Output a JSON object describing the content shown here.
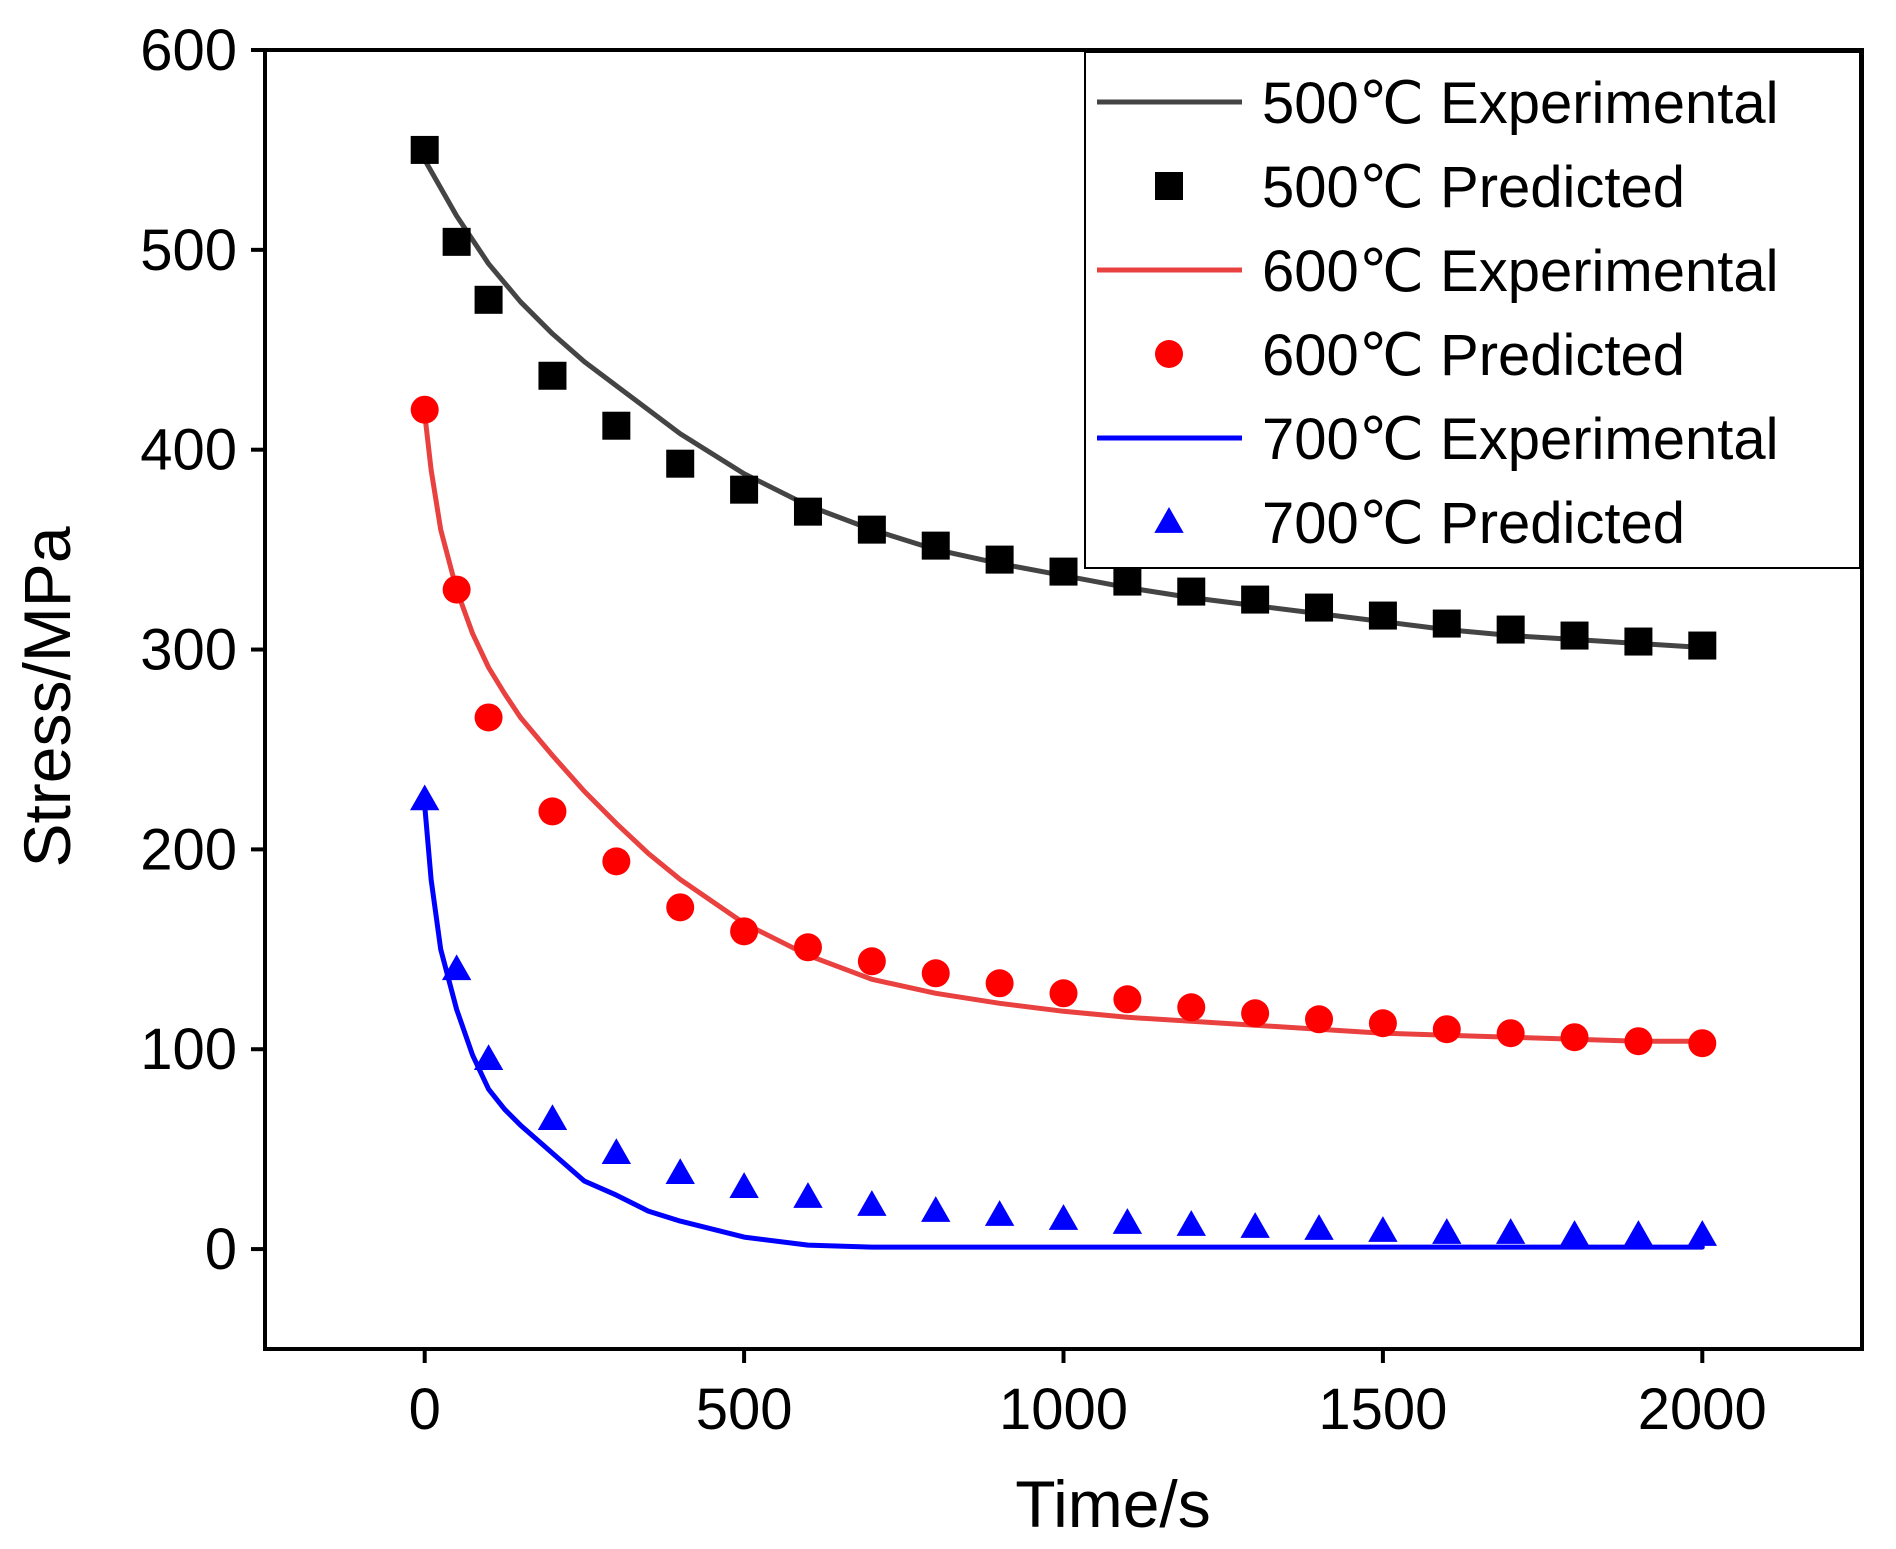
{
  "chart_data": {
    "type": "line",
    "xlabel": "Time/s",
    "ylabel": "Stress/MPa",
    "xlim": [
      -250,
      2250
    ],
    "ylim": [
      -50,
      600
    ],
    "xticks": [
      0,
      500,
      1000,
      1500,
      2000
    ],
    "yticks": [
      0,
      100,
      200,
      300,
      400,
      500,
      600
    ],
    "legend_position": "top-right",
    "series": [
      {
        "name": "500℃ Experimental",
        "kind": "line",
        "color": "#444444",
        "x": [
          0,
          50,
          100,
          150,
          200,
          250,
          300,
          400,
          500,
          600,
          700,
          800,
          900,
          1000,
          1100,
          1200,
          1300,
          1400,
          1500,
          1600,
          1700,
          1800,
          1900,
          2000
        ],
        "values": [
          545,
          517,
          493,
          474,
          458,
          444,
          432,
          408,
          388,
          372,
          360,
          350,
          343,
          337,
          331,
          326,
          322,
          318,
          314,
          310,
          307,
          305,
          303,
          301
        ]
      },
      {
        "name": "500℃ Predicted",
        "kind": "scatter",
        "marker": "square",
        "color": "#000000",
        "x": [
          0,
          50,
          100,
          200,
          300,
          400,
          500,
          600,
          700,
          800,
          900,
          1000,
          1100,
          1200,
          1300,
          1400,
          1500,
          1600,
          1700,
          1800,
          1900,
          2000
        ],
        "values": [
          550,
          504,
          475,
          437,
          412,
          393,
          380,
          369,
          360,
          352,
          345,
          339,
          334,
          329,
          325,
          321,
          317,
          313,
          310,
          307,
          304,
          302
        ]
      },
      {
        "name": "600℃ Experimental",
        "kind": "line",
        "color": "#e8413f",
        "x": [
          0,
          10,
          25,
          50,
          75,
          100,
          125,
          150,
          200,
          250,
          300,
          350,
          400,
          500,
          600,
          700,
          800,
          900,
          1000,
          1100,
          1200,
          1300,
          1400,
          1500,
          1600,
          1700,
          1800,
          1900,
          2000
        ],
        "values": [
          418,
          390,
          360,
          330,
          308,
          291,
          278,
          266,
          247,
          229,
          213,
          198,
          185,
          163,
          147,
          135,
          128,
          123,
          119,
          116,
          114,
          112,
          110,
          108,
          107,
          106,
          105,
          104,
          104
        ]
      },
      {
        "name": "600℃ Predicted",
        "kind": "scatter",
        "marker": "circle",
        "color": "#ff0000",
        "x": [
          0,
          50,
          100,
          200,
          300,
          400,
          500,
          600,
          700,
          800,
          900,
          1000,
          1100,
          1200,
          1300,
          1400,
          1500,
          1600,
          1700,
          1800,
          1900,
          2000
        ],
        "values": [
          420,
          330,
          266,
          219,
          194,
          171,
          159,
          151,
          144,
          138,
          133,
          128,
          125,
          121,
          118,
          115,
          113,
          110,
          108,
          106,
          104,
          103
        ]
      },
      {
        "name": "700℃ Experimental",
        "kind": "line",
        "color": "#0000ff",
        "x": [
          0,
          10,
          25,
          50,
          75,
          100,
          125,
          150,
          200,
          250,
          300,
          350,
          400,
          500,
          600,
          700,
          800,
          900,
          1000,
          1200,
          1400,
          1600,
          1800,
          2000
        ],
        "values": [
          222,
          185,
          150,
          120,
          97,
          80,
          70,
          62,
          48,
          34,
          27,
          19,
          14,
          6,
          2,
          1,
          1,
          1,
          1,
          1,
          1,
          1,
          1,
          1
        ]
      },
      {
        "name": "700℃ Predicted",
        "kind": "scatter",
        "marker": "triangle",
        "color": "#0000ff",
        "x": [
          0,
          50,
          100,
          200,
          300,
          400,
          500,
          600,
          700,
          800,
          900,
          1000,
          1100,
          1200,
          1300,
          1400,
          1500,
          1600,
          1700,
          1800,
          1900,
          2000
        ],
        "values": [
          225,
          140,
          95,
          65,
          48,
          38,
          31,
          26,
          22,
          19,
          17,
          15,
          13,
          12,
          11,
          10,
          9,
          8,
          8,
          7,
          7,
          7
        ]
      }
    ]
  }
}
